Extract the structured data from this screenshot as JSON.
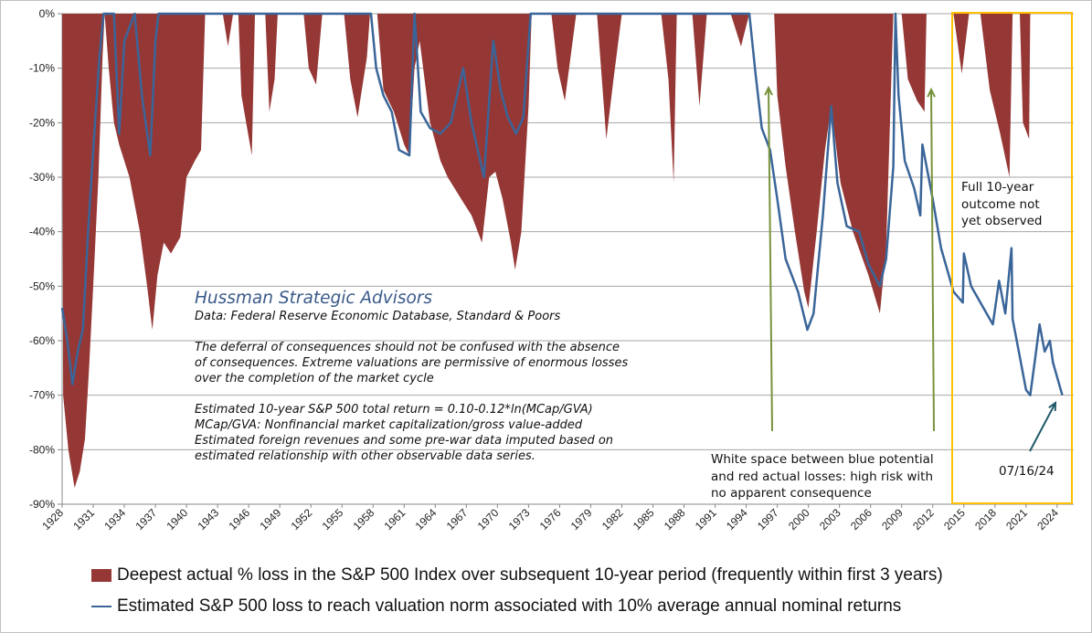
{
  "chart_data": {
    "type": "area+line",
    "ylim": [
      -90,
      0
    ],
    "xlim": [
      1928,
      2025.6
    ],
    "grid": true,
    "y_ticks": [
      "0%",
      "-10%",
      "-20%",
      "-30%",
      "-40%",
      "-50%",
      "-60%",
      "-70%",
      "-80%",
      "-90%"
    ],
    "x_ticks": [
      "1928",
      "1931",
      "1934",
      "1937",
      "1940",
      "1943",
      "1946",
      "1949",
      "1952",
      "1955",
      "1958",
      "1961",
      "1964",
      "1967",
      "1970",
      "1973",
      "1976",
      "1979",
      "1982",
      "1985",
      "1988",
      "1991",
      "1994",
      "1997",
      "2000",
      "2003",
      "2006",
      "2009",
      "2012",
      "2015",
      "2018",
      "2021",
      "2024"
    ],
    "series": [
      {
        "name": "Deepest actual % loss in the S&P 500 Index over subsequent 10-year period (frequently within first 3 years)",
        "type": "area",
        "color": "#953735",
        "points": [
          [
            1928,
            0
          ],
          [
            1928.1,
            -70
          ],
          [
            1928.6,
            -80
          ],
          [
            1929.2,
            -87
          ],
          [
            1929.7,
            -84
          ],
          [
            1930.2,
            -78
          ],
          [
            1930.6,
            -65
          ],
          [
            1931,
            -50
          ],
          [
            1931.5,
            -30
          ],
          [
            1931.9,
            -8
          ],
          [
            1932.1,
            0
          ],
          [
            1932.5,
            -10
          ],
          [
            1933,
            -20
          ],
          [
            1933.5,
            -24
          ],
          [
            1934.5,
            -30
          ],
          [
            1935.5,
            -40
          ],
          [
            1936.2,
            -50
          ],
          [
            1936.7,
            -58
          ],
          [
            1937.2,
            -48
          ],
          [
            1937.8,
            -42
          ],
          [
            1938.5,
            -44
          ],
          [
            1939.4,
            -41
          ],
          [
            1940,
            -30
          ],
          [
            1940.8,
            -27
          ],
          [
            1941.4,
            -25
          ],
          [
            1941.8,
            0
          ],
          [
            1943.5,
            0
          ],
          [
            1944,
            -6
          ],
          [
            1944.5,
            0
          ],
          [
            1945,
            0
          ],
          [
            1945.3,
            -15
          ],
          [
            1946.3,
            -26
          ],
          [
            1946.6,
            0
          ],
          [
            1947.6,
            0
          ],
          [
            1948,
            -18
          ],
          [
            1948.5,
            -12
          ],
          [
            1948.8,
            0
          ],
          [
            1951.3,
            0
          ],
          [
            1951.8,
            -10
          ],
          [
            1952.5,
            -13
          ],
          [
            1953.1,
            0
          ],
          [
            1955.2,
            0
          ],
          [
            1955.8,
            -12
          ],
          [
            1956.5,
            -19
          ],
          [
            1957.4,
            -8
          ],
          [
            1957.7,
            0
          ],
          [
            1958.4,
            0
          ],
          [
            1959,
            -14
          ],
          [
            1960,
            -18
          ],
          [
            1961,
            -24
          ],
          [
            1961.5,
            -26
          ],
          [
            1962,
            -10
          ],
          [
            1962.5,
            -5
          ],
          [
            1963.5,
            -20
          ],
          [
            1964.5,
            -27
          ],
          [
            1965.2,
            -30
          ],
          [
            1966.5,
            -34
          ],
          [
            1967.5,
            -37
          ],
          [
            1968.5,
            -42
          ],
          [
            1969.2,
            -30
          ],
          [
            1969.8,
            -29
          ],
          [
            1970.5,
            -34
          ],
          [
            1971.3,
            -42
          ],
          [
            1971.7,
            -47
          ],
          [
            1972.3,
            -40
          ],
          [
            1973,
            -17
          ],
          [
            1973.3,
            0
          ],
          [
            1975.2,
            0
          ],
          [
            1975.8,
            -10
          ],
          [
            1976.5,
            -16
          ],
          [
            1977.6,
            0
          ],
          [
            1979.6,
            0
          ],
          [
            1980.5,
            -23
          ],
          [
            1981.2,
            -12
          ],
          [
            1982,
            0
          ],
          [
            1985.8,
            0
          ],
          [
            1986.5,
            -12
          ],
          [
            1987,
            -31
          ],
          [
            1987.3,
            0
          ],
          [
            1988.8,
            0
          ],
          [
            1989.5,
            -17
          ],
          [
            1990.2,
            0
          ],
          [
            1992.5,
            0
          ],
          [
            1993.5,
            -6
          ],
          [
            1994.3,
            0
          ],
          [
            1996.7,
            0
          ],
          [
            1997,
            -15
          ],
          [
            1997.8,
            -28
          ],
          [
            1998.7,
            -40
          ],
          [
            1999.6,
            -51
          ],
          [
            2000,
            -54
          ],
          [
            2000.8,
            -40
          ],
          [
            2001.6,
            -25
          ],
          [
            2002.2,
            -17
          ],
          [
            2003.1,
            -31
          ],
          [
            2004.3,
            -40
          ],
          [
            2005.8,
            -48
          ],
          [
            2006.9,
            -55
          ],
          [
            2007.5,
            -43
          ],
          [
            2008.2,
            0
          ],
          [
            2009,
            0
          ],
          [
            2009.6,
            -12
          ],
          [
            2010.5,
            -16
          ],
          [
            2011.2,
            -18
          ],
          [
            2011.4,
            0
          ],
          [
            2014,
            0
          ],
          [
            2014.8,
            -11
          ],
          [
            2015.5,
            0
          ],
          [
            2016.6,
            0
          ],
          [
            2017.5,
            -14
          ],
          [
            2018.5,
            -22
          ],
          [
            2019.4,
            -30
          ],
          [
            2019.7,
            0
          ],
          [
            2020.4,
            0
          ],
          [
            2020.7,
            -20
          ],
          [
            2021.3,
            -23
          ],
          [
            2021.4,
            0
          ]
        ]
      },
      {
        "name": "Estimated S&P 500 loss to reach valuation norm associated with 10% average annual nominal returns",
        "type": "line",
        "color": "#3a6599",
        "points": [
          [
            1928,
            -54
          ],
          [
            1928.5,
            -60
          ],
          [
            1929,
            -68
          ],
          [
            1929.5,
            -62
          ],
          [
            1930,
            -58
          ],
          [
            1930.5,
            -40
          ],
          [
            1931,
            -25
          ],
          [
            1931.6,
            -8
          ],
          [
            1932,
            0
          ],
          [
            1933,
            0
          ],
          [
            1933.5,
            -22
          ],
          [
            1934,
            -5
          ],
          [
            1935,
            0
          ],
          [
            1935.7,
            -15
          ],
          [
            1936.5,
            -26
          ],
          [
            1937,
            -5
          ],
          [
            1937.3,
            0
          ],
          [
            1957.8,
            0
          ],
          [
            1958.3,
            -10
          ],
          [
            1959,
            -15
          ],
          [
            1959.8,
            -18
          ],
          [
            1960.5,
            -25
          ],
          [
            1961.5,
            -26
          ],
          [
            1962,
            0
          ],
          [
            1962.6,
            -18
          ],
          [
            1963.5,
            -21
          ],
          [
            1964.5,
            -22
          ],
          [
            1965.5,
            -20
          ],
          [
            1966.7,
            -10
          ],
          [
            1967.5,
            -20
          ],
          [
            1968.7,
            -30
          ],
          [
            1969.6,
            -5
          ],
          [
            1970.3,
            -14
          ],
          [
            1971,
            -19
          ],
          [
            1971.8,
            -22
          ],
          [
            1972.5,
            -19
          ],
          [
            1973.2,
            0
          ],
          [
            1994.3,
            0
          ],
          [
            1994.9,
            -11
          ],
          [
            1995.5,
            -21
          ],
          [
            1996.3,
            -25
          ],
          [
            1997,
            -34
          ],
          [
            1997.8,
            -45
          ],
          [
            1999,
            -51
          ],
          [
            1999.9,
            -58
          ],
          [
            2000.5,
            -55
          ],
          [
            2001.4,
            -37
          ],
          [
            2002.2,
            -17
          ],
          [
            2002.8,
            -31
          ],
          [
            2003.7,
            -39
          ],
          [
            2004.9,
            -40
          ],
          [
            2005.8,
            -46
          ],
          [
            2006.9,
            -50
          ],
          [
            2007.5,
            -45
          ],
          [
            2008.2,
            -28
          ],
          [
            2008.4,
            0
          ],
          [
            2008.7,
            -15
          ],
          [
            2009.3,
            -27
          ],
          [
            2010.2,
            -32
          ],
          [
            2010.8,
            -37
          ],
          [
            2011,
            -24
          ],
          [
            2012,
            -34
          ],
          [
            2012.8,
            -43
          ],
          [
            2013.4,
            -47
          ],
          [
            2014,
            -51
          ],
          [
            2014.9,
            -53
          ],
          [
            2015,
            -44
          ],
          [
            2015.7,
            -50
          ],
          [
            2016.9,
            -54
          ],
          [
            2017.8,
            -57
          ],
          [
            2018.4,
            -49
          ],
          [
            2019,
            -55
          ],
          [
            2019.6,
            -43
          ],
          [
            2019.7,
            -56
          ],
          [
            2020.2,
            -61
          ],
          [
            2021,
            -69
          ],
          [
            2021.4,
            -70
          ],
          [
            2021.9,
            -63
          ],
          [
            2022.3,
            -57
          ],
          [
            2022.8,
            -62
          ],
          [
            2023.3,
            -60
          ],
          [
            2023.6,
            -64
          ],
          [
            2024.5,
            -70
          ]
        ]
      }
    ],
    "highlight_box_color": "#ffc000",
    "arrow_color_green": "#77933c",
    "arrow_color_teal": "#215a6a"
  },
  "annotations": {
    "info_title": "Hussman Strategic Advisors",
    "info_source": "Data: Federal Reserve Economic Database, Standard & Poors",
    "info_p1": [
      "The deferral of consequences should not be confused with the absence",
      "of consequences.  Extreme valuations are permissive of enormous losses",
      "over the completion of the market cycle"
    ],
    "info_p2": [
      "Estimated 10-year S&P 500 total return = 0.10-0.12*ln(MCap/GVA)",
      "MCap/GVA: Nonfinancial market capitalization/gross value-added",
      "Estimated foreign revenues and some pre-war data imputed based on",
      "estimated relationship with other observable data series."
    ],
    "white_space": [
      "White space between blue potential",
      "and red actual losses: high risk with",
      "no apparent consequence"
    ],
    "full_outcome": [
      "Full 10-year",
      "outcome not",
      "yet observed"
    ],
    "latest_date": "07/16/24"
  },
  "legend": {
    "red_label": "Deepest actual % loss in the S&P 500 Index over subsequent 10-year period (frequently within first 3 years)",
    "blue_label": "Estimated S&P 500 loss to reach valuation norm associated with 10% average annual nominal returns"
  }
}
